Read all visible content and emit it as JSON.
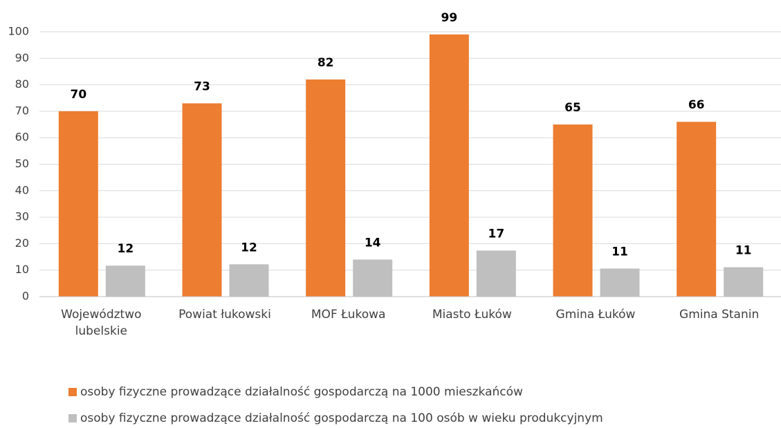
{
  "chart_data": {
    "type": "bar",
    "categories": [
      "Województwo lubelskie",
      "Powiat łukowski",
      "MOF Łukowa",
      "Miasto Łuków",
      "Gmina Łuków",
      "Gmina Stanin"
    ],
    "series": [
      {
        "name": "osoby fizyczne prowadzące działalność gospodarczą na 1000 mieszkańców",
        "color": "#ed7d31",
        "values": [
          70,
          73,
          82,
          99,
          65,
          66
        ]
      },
      {
        "name": "osoby fizyczne prowadzące działalność gospodarczą na 100 osób w wieku produkcyjnym",
        "color": "#bfbfbf",
        "values": [
          11.7,
          12.2,
          14,
          17.4,
          10.6,
          11.1
        ],
        "value_labels": [
          "12",
          "12",
          "14",
          "17",
          "11",
          "11"
        ]
      }
    ],
    "ylim": [
      0,
      100
    ],
    "yticks": [
      0,
      10,
      20,
      30,
      40,
      50,
      60,
      70,
      80,
      90,
      100
    ],
    "grid": true,
    "legend": "bottom"
  }
}
